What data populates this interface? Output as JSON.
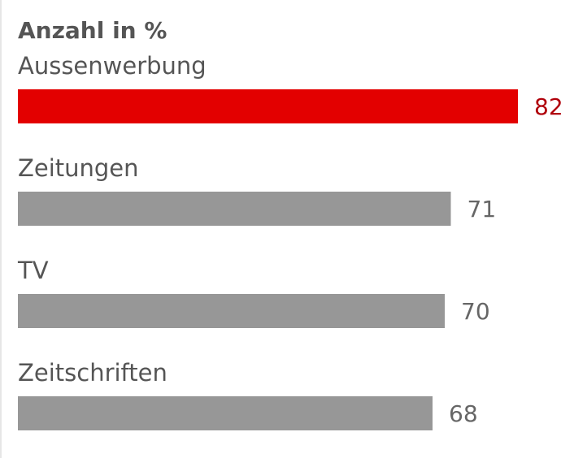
{
  "chart_data": {
    "type": "bar",
    "orientation": "horizontal",
    "title": "Anzahl in %",
    "categories": [
      "Aussenwerbung",
      "Zeitungen",
      "TV",
      "Zeitschriften"
    ],
    "values": [
      82,
      71,
      70,
      68
    ],
    "highlight_index": 0,
    "colors": {
      "highlight": "#e30000",
      "default": "#979797"
    },
    "xlim": [
      0,
      100
    ],
    "grid": false,
    "legend": "none"
  }
}
